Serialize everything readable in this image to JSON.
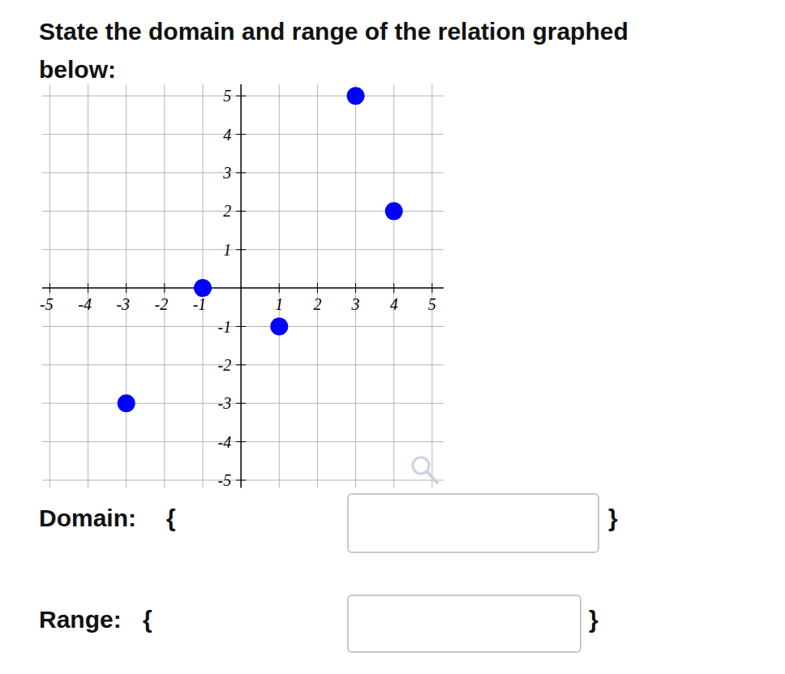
{
  "question": {
    "lines": [
      "State the domain and range of the relation graphed",
      "below:"
    ]
  },
  "chart_data": {
    "type": "scatter",
    "x": [
      3,
      4,
      -1,
      1,
      -3
    ],
    "values": [
      5,
      2,
      0,
      -1,
      -3
    ],
    "color": "#0000ff",
    "marker": "circle",
    "xlim": [
      -5.2,
      5.3
    ],
    "ylim": [
      -5.2,
      5.3
    ],
    "xticks": [
      -5,
      -4,
      -3,
      -2,
      -1,
      1,
      2,
      3,
      4,
      5
    ],
    "yticks": [
      -5,
      -4,
      -3,
      -2,
      -1,
      1,
      2,
      3,
      4,
      5
    ],
    "grid": true
  },
  "answer_fields": [
    {
      "label": "Domain:",
      "open": "{",
      "close": "}"
    },
    {
      "label": "Range:",
      "open": "{",
      "close": "}"
    }
  ]
}
